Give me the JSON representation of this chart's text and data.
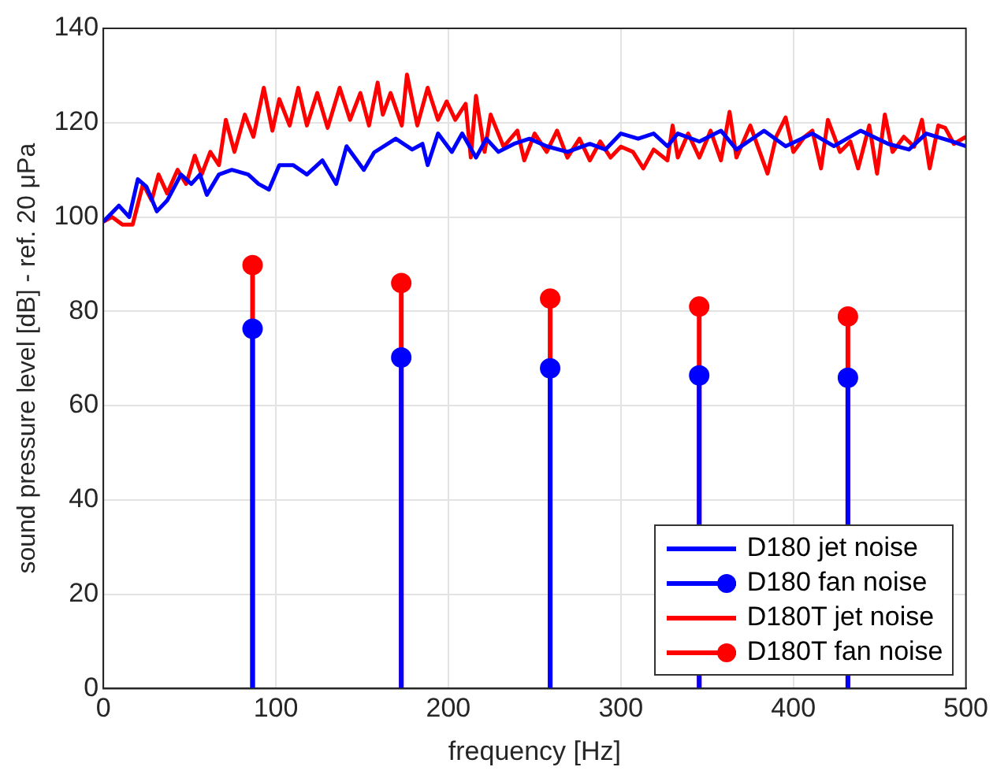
{
  "chart_data": {
    "type": "line",
    "xlabel": "frequency [Hz]",
    "ylabel": "sound pressure level [dB] - ref. 20 μPa",
    "xlim": [
      0,
      500
    ],
    "xticks": [
      0,
      100,
      200,
      300,
      400,
      500
    ],
    "ylim": [
      0,
      140
    ],
    "yticks": [
      0,
      20,
      40,
      60,
      80,
      100,
      120,
      140
    ],
    "grid": true,
    "legend": "bottom right",
    "line_style": "solid",
    "series": [
      {
        "name": "D180 jet noise",
        "color": "#0000ff",
        "marker": "none",
        "x": [
          0,
          9,
          15,
          20,
          25,
          31,
          37,
          45,
          51,
          56,
          60,
          67,
          74.5,
          84,
          90,
          96,
          102,
          110,
          118,
          127,
          135,
          141,
          151,
          157,
          169.5,
          179,
          185,
          188,
          194,
          202,
          208,
          216,
          222,
          229,
          238,
          247,
          257,
          269,
          282,
          291,
          300,
          310,
          319,
          327,
          333,
          345.5,
          358,
          367,
          383,
          395.5,
          411,
          423.5,
          439,
          455,
          467,
          477,
          492,
          500
        ],
        "values": [
          99,
          102.4,
          100,
          108,
          106.4,
          101.2,
          103.5,
          109,
          107,
          109,
          104.7,
          109,
          110,
          109,
          107,
          105.8,
          111,
          111,
          109,
          112,
          107,
          115,
          110,
          113.7,
          116.6,
          114.3,
          115.5,
          111,
          117.7,
          113.8,
          117.7,
          112.6,
          116.6,
          113.8,
          115.5,
          116.6,
          115,
          113.8,
          115.5,
          114.3,
          117.7,
          116.6,
          117.7,
          115,
          117.7,
          116,
          118.3,
          114.3,
          118.3,
          115,
          117.7,
          115,
          118.3,
          115.5,
          114.3,
          117.7,
          116,
          115
        ]
      },
      {
        "name": "D180 fan noise",
        "type": "lollipop",
        "color": "#0000ff",
        "marker": "circle",
        "x": [
          86.5,
          172.7,
          259,
          345.4,
          431.6
        ],
        "values": [
          76.3,
          70.2,
          67.9,
          66.4,
          65.9
        ]
      },
      {
        "name": "D180T jet noise",
        "color": "#ff0000",
        "marker": "none",
        "x": [
          0,
          5,
          11,
          17,
          23,
          28,
          32,
          37,
          43,
          48,
          53,
          57,
          62,
          67,
          71,
          76,
          82,
          87,
          93,
          98,
          102,
          108,
          113,
          118,
          124,
          130,
          137,
          143,
          149,
          154,
          159,
          162,
          166.5,
          173,
          176,
          182,
          188,
          194,
          199,
          204,
          210,
          213,
          216,
          221,
          224.5,
          232,
          240,
          244,
          250,
          257,
          263,
          269,
          276,
          282,
          288,
          294,
          300,
          307,
          313,
          319,
          327,
          330,
          333,
          339,
          345.5,
          352,
          358,
          363,
          367,
          375,
          385,
          390,
          395.5,
          400,
          406.5,
          411,
          416,
          420,
          427,
          433,
          437.5,
          444,
          448.5,
          453,
          457.5,
          464,
          470,
          474.5,
          479,
          484,
          488,
          493,
          500
        ],
        "values": [
          99,
          100,
          98.4,
          98.4,
          107,
          103.5,
          109,
          105,
          110,
          107,
          113,
          109,
          113.8,
          111,
          120.6,
          113.8,
          121.7,
          117,
          127.4,
          118.3,
          125,
          119.4,
          127.4,
          119.4,
          126.3,
          118.9,
          127.4,
          120.6,
          126.3,
          119.4,
          128.5,
          121.7,
          126.3,
          119.4,
          130.2,
          119.4,
          127.4,
          120.6,
          124.5,
          120.6,
          124,
          112.6,
          125.7,
          113.8,
          121.7,
          114.9,
          118.3,
          112,
          117.7,
          113.8,
          118.3,
          112.6,
          116.6,
          112,
          116,
          112.6,
          114.9,
          113.8,
          110.3,
          114.3,
          112,
          119.4,
          112.6,
          117.7,
          112.6,
          118.3,
          112,
          122.3,
          112.6,
          119.4,
          109.2,
          117,
          121.1,
          113.8,
          117,
          118.3,
          110.3,
          120.6,
          113.8,
          116,
          110.3,
          119.4,
          109.2,
          121.7,
          113.8,
          117,
          114.9,
          120.6,
          110.3,
          119.4,
          118.9,
          115.5,
          117
        ]
      },
      {
        "name": "D180T fan noise",
        "type": "lollipop",
        "color": "#ff0000",
        "marker": "circle",
        "x": [
          86.5,
          172.7,
          259,
          345.4,
          431.6
        ],
        "values": [
          89.8,
          86,
          82.7,
          81,
          78.9
        ]
      }
    ]
  }
}
